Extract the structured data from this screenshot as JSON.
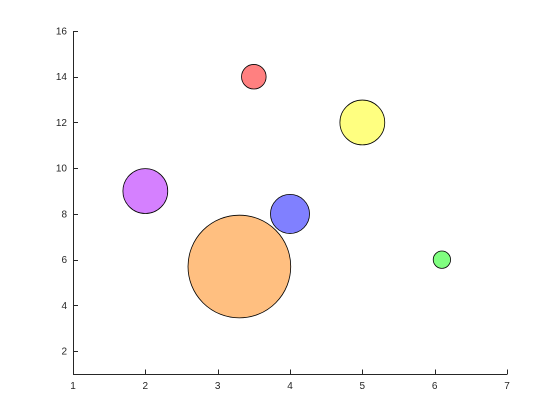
{
  "chart_data": {
    "type": "scatter",
    "title": "",
    "xlabel": "",
    "ylabel": "",
    "xlim": [
      1,
      7
    ],
    "ylim": [
      1,
      16
    ],
    "xticks": [
      1,
      2,
      3,
      4,
      5,
      6,
      7
    ],
    "yticks": [
      2,
      4,
      6,
      8,
      10,
      12,
      14,
      16
    ],
    "xtick_labels": [
      "1",
      "2",
      "3",
      "4",
      "5",
      "6",
      "7"
    ],
    "ytick_labels": [
      "2",
      "4",
      "6",
      "8",
      "10",
      "12",
      "14",
      "16"
    ],
    "grid": false,
    "legend": "none",
    "points": [
      {
        "x": 3.5,
        "y": 14,
        "size": 0.17,
        "color": "#ff8080"
      },
      {
        "x": 5.0,
        "y": 12,
        "size": 0.31,
        "color": "#ffff80"
      },
      {
        "x": 2.0,
        "y": 9,
        "size": 0.31,
        "color": "#d580ff"
      },
      {
        "x": 4.0,
        "y": 8,
        "size": 0.27,
        "color": "#8080ff"
      },
      {
        "x": 3.3,
        "y": 5.7,
        "size": 0.71,
        "color": "#ffbf80"
      },
      {
        "x": 6.1,
        "y": 6,
        "size": 0.12,
        "color": "#80ff80"
      }
    ],
    "size_note_unit": "x-axis units (bubble radius)"
  }
}
